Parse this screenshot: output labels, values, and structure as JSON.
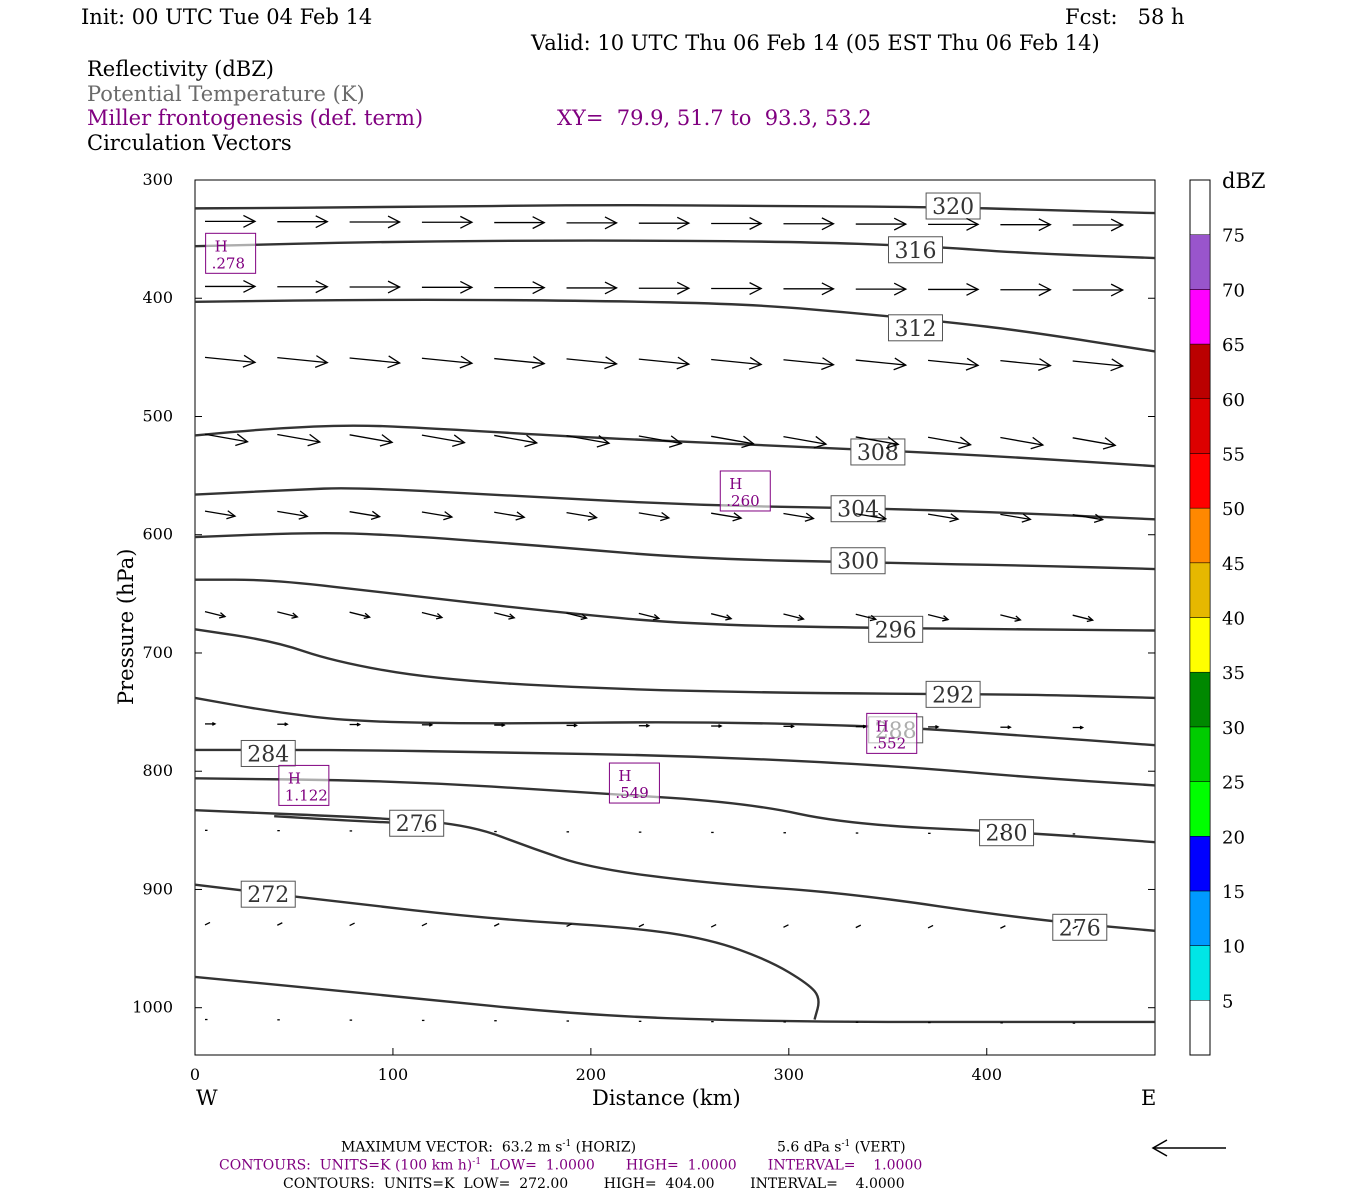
{
  "header": {
    "init": "Init: 00 UTC Tue 04 Feb 14",
    "fcst": "Fcst:   58 h",
    "valid": "Valid: 10 UTC Thu 06 Feb 14 (05 EST Thu 06 Feb 14)",
    "field1": "Reflectivity (dBZ)",
    "field2": "Potential Temperature (K)",
    "field3": "Miller frontogenesis (def. term)",
    "xy": "XY=  79.9, 51.7 to  93.3, 53.2",
    "field4": "Circulation Vectors"
  },
  "colors": {
    "contour": "#333333",
    "purple": "#800080",
    "gray_text": "#6a6a6a"
  },
  "chart_data": {
    "type": "cross-section",
    "xlabel": "Distance (km)",
    "ylabel": "Pressure (hPa)",
    "xlim": [
      0,
      485
    ],
    "ylim": [
      1040,
      300
    ],
    "x_ticks": [
      0,
      100,
      200,
      300,
      400
    ],
    "y_ticks": [
      300,
      400,
      500,
      600,
      700,
      800,
      900,
      1000
    ],
    "x_end_labels": {
      "left": "W",
      "right": "E"
    },
    "theta_contours": [
      {
        "label": "320",
        "points": [
          [
            0,
            324
          ],
          [
            100,
            323
          ],
          [
            200,
            321
          ],
          [
            300,
            322
          ],
          [
            380,
            323
          ],
          [
            420,
            325
          ],
          [
            485,
            328
          ]
        ],
        "label_at": [
          383,
          322
        ]
      },
      {
        "label": "316",
        "points": [
          [
            0,
            356
          ],
          [
            100,
            352
          ],
          [
            200,
            351
          ],
          [
            300,
            352
          ],
          [
            370,
            356
          ],
          [
            420,
            362
          ],
          [
            485,
            366
          ]
        ],
        "label_at": [
          364,
          359
        ]
      },
      {
        "label": "312",
        "points": [
          [
            0,
            403
          ],
          [
            100,
            401
          ],
          [
            200,
            402
          ],
          [
            280,
            405
          ],
          [
            330,
            412
          ],
          [
            380,
            420
          ],
          [
            420,
            428
          ],
          [
            485,
            445
          ]
        ],
        "label_at": [
          364,
          425
        ]
      },
      {
        "label": "308",
        "points": [
          [
            0,
            516
          ],
          [
            40,
            510
          ],
          [
            80,
            507
          ],
          [
            120,
            510
          ],
          [
            200,
            518
          ],
          [
            300,
            525
          ],
          [
            400,
            533
          ],
          [
            485,
            542
          ]
        ],
        "label_at": [
          345,
          530
        ]
      },
      {
        "label": "304",
        "points": [
          [
            0,
            566
          ],
          [
            50,
            562
          ],
          [
            80,
            560
          ],
          [
            150,
            566
          ],
          [
            250,
            575
          ],
          [
            350,
            578
          ],
          [
            420,
            582
          ],
          [
            485,
            587
          ]
        ],
        "label_at": [
          335,
          578
        ]
      },
      {
        "label": "300",
        "points": [
          [
            0,
            602
          ],
          [
            60,
            598
          ],
          [
            100,
            600
          ],
          [
            180,
            610
          ],
          [
            250,
            620
          ],
          [
            350,
            624
          ],
          [
            420,
            626
          ],
          [
            485,
            629
          ]
        ],
        "label_at": [
          335,
          622
        ]
      },
      {
        "label": "296",
        "points": [
          [
            0,
            638
          ],
          [
            40,
            638
          ],
          [
            100,
            650
          ],
          [
            180,
            665
          ],
          [
            250,
            676
          ],
          [
            350,
            679
          ],
          [
            420,
            680
          ],
          [
            485,
            681
          ]
        ],
        "label_at": [
          354,
          680
        ]
      },
      {
        "label": "292",
        "points": [
          [
            0,
            680
          ],
          [
            40,
            690
          ],
          [
            70,
            707
          ],
          [
            120,
            722
          ],
          [
            200,
            730
          ],
          [
            300,
            734
          ],
          [
            420,
            735
          ],
          [
            485,
            738
          ]
        ],
        "label_at": [
          383,
          735
        ]
      },
      {
        "label": "288",
        "points": [
          [
            0,
            738
          ],
          [
            40,
            750
          ],
          [
            80,
            758
          ],
          [
            150,
            760
          ],
          [
            250,
            758
          ],
          [
            350,
            762
          ],
          [
            420,
            770
          ],
          [
            485,
            778
          ]
        ],
        "label_at": [
          354,
          765
        ]
      },
      {
        "label": "284",
        "points": [
          [
            0,
            782
          ],
          [
            80,
            782
          ],
          [
            150,
            784
          ],
          [
            250,
            787
          ],
          [
            350,
            795
          ],
          [
            420,
            805
          ],
          [
            485,
            812
          ]
        ],
        "label_at": [
          37,
          785
        ]
      },
      {
        "label": "280",
        "points": [
          [
            0,
            806
          ],
          [
            100,
            808
          ],
          [
            200,
            818
          ],
          [
            280,
            827
          ],
          [
            330,
            845
          ],
          [
            420,
            852
          ],
          [
            485,
            860
          ]
        ],
        "label_at": [
          410,
          852
        ]
      },
      {
        "label": "276",
        "points": [
          [
            0,
            833
          ],
          [
            100,
            840
          ],
          [
            140,
            846
          ],
          [
            170,
            865
          ],
          [
            200,
            882
          ],
          [
            260,
            895
          ],
          [
            330,
            903
          ],
          [
            420,
            925
          ],
          [
            485,
            935
          ]
        ],
        "label_at": [
          447,
          932
        ]
      },
      {
        "label": "276",
        "points": [
          [
            40,
            838
          ],
          [
            80,
            842
          ],
          [
            120,
            845
          ]
        ],
        "label_at": [
          112,
          844
        ]
      },
      {
        "label": "272",
        "points": [
          [
            0,
            896
          ],
          [
            70,
            910
          ],
          [
            150,
            925
          ],
          [
            220,
            932
          ],
          [
            260,
            942
          ],
          [
            290,
            960
          ],
          [
            310,
            980
          ],
          [
            316,
            992
          ],
          [
            313,
            1010
          ]
        ],
        "label_at": [
          37,
          904
        ]
      },
      {
        "label": "",
        "points": [
          [
            0,
            974
          ],
          [
            100,
            990
          ],
          [
            200,
            1007
          ],
          [
            300,
            1012
          ],
          [
            400,
            1012
          ],
          [
            485,
            1012
          ]
        ],
        "label_at": null
      }
    ],
    "frontogenesis_maxima": [
      {
        "label": "H",
        "value": ".278",
        "x": 18,
        "p": 362
      },
      {
        "label": "H",
        "value": ".260",
        "x": 278,
        "p": 563
      },
      {
        "label": "H",
        "value": ".552",
        "x": 352,
        "p": 768
      },
      {
        "label": "H",
        "value": "1.122",
        "x": 55,
        "p": 812
      },
      {
        "label": "H",
        "value": ".549",
        "x": 222,
        "p": 810
      }
    ],
    "vector_rows": [
      {
        "p": 335,
        "start": 2,
        "u": 0.2,
        "w": 0.0,
        "n": 13
      },
      {
        "p": 390,
        "start": 2,
        "u": 0.2,
        "w": 0.0,
        "n": 13
      },
      {
        "p": 450,
        "start": 2,
        "u": 0.2,
        "w": -0.02,
        "n": 13
      },
      {
        "p": 515,
        "start": 2,
        "u": 0.17,
        "w": -0.03,
        "n": 13
      },
      {
        "p": 580,
        "start": 2,
        "u": 0.12,
        "w": -0.02,
        "n": 13
      },
      {
        "p": 665,
        "start": 2,
        "u": 0.08,
        "w": -0.02,
        "n": 13
      },
      {
        "p": 760,
        "start": 2,
        "u": 0.04,
        "w": 0.0,
        "n": 13
      },
      {
        "p": 850,
        "start": 2,
        "u": 0.01,
        "w": 0.0,
        "n": 13
      },
      {
        "p": 930,
        "start": 2,
        "u": 0.02,
        "w": 0.01,
        "n": 13
      },
      {
        "p": 1010,
        "start": 2,
        "u": 0.01,
        "w": 0.0,
        "n": 13
      }
    ],
    "colorbar": {
      "unit": "dBZ",
      "levels": [
        5,
        10,
        15,
        20,
        25,
        30,
        35,
        40,
        45,
        50,
        55,
        60,
        65,
        70,
        75
      ],
      "colors": [
        "#00e6e6",
        "#0099ff",
        "#0000ff",
        "#00ff00",
        "#00cc00",
        "#008800",
        "#ffff00",
        "#e6b800",
        "#ff8800",
        "#ff0000",
        "#dd0000",
        "#bb0000",
        "#ff00ff",
        "#9955cc"
      ]
    }
  },
  "footer": {
    "max_vector_label": "MAXIMUM VECTOR:  63.2 m s",
    "max_vector_unit": "-1",
    "max_vector_horiz": " (HORIZ)",
    "vert_value": "5.6 dPa s",
    "vert_unit": "-1",
    "vert_tail": " (VERT)",
    "contours1_a": "CONTOURS:  UNITS=K (100 km h)",
    "contours1_sup": "-1",
    "contours1_b": "  LOW=  1.0000       HIGH=  1.0000       INTERVAL=    1.0000",
    "contours2": "CONTOURS:  UNITS=K  LOW=  272.00        HIGH=  404.00        INTERVAL=    4.0000"
  }
}
